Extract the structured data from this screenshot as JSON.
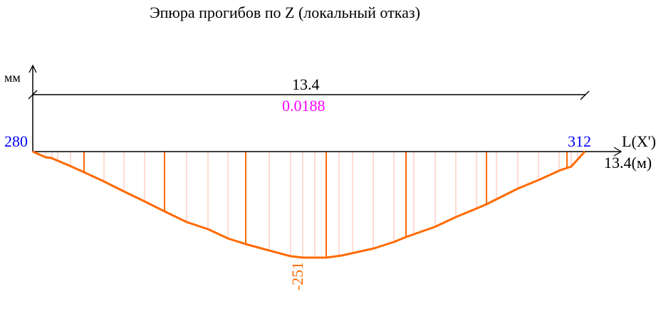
{
  "title": "Эпюра прогибов по Z (локальный отказ)",
  "y_axis_unit": "мм",
  "x_axis_label": "L(X')",
  "x_axis_length_label": "13.4(м)",
  "dimension": {
    "length": "13.4",
    "scale": "0.0188"
  },
  "start_node": "280",
  "end_node": "312",
  "extreme_value": "-251",
  "colors": {
    "curve": "#ff6a00",
    "hatch": "#ffb8a8",
    "node": "#0000ff",
    "scale": "#ff00ff",
    "axis": "#000000"
  }
}
